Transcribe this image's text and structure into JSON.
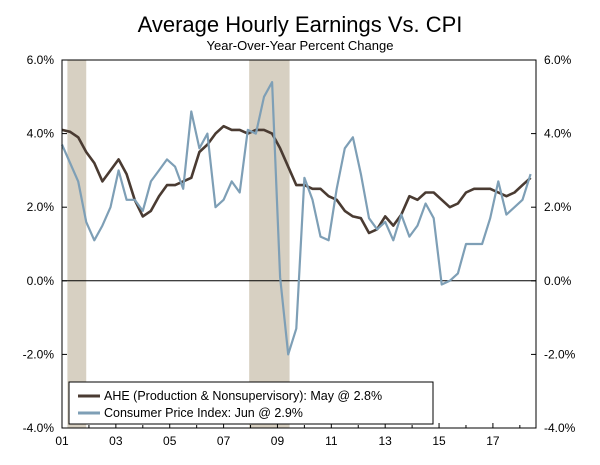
{
  "chart_data": {
    "type": "line",
    "title": "Average Hourly Earnings Vs. CPI",
    "subtitle": "Year-Over-Year Percent Change",
    "xlabel": "",
    "ylabel": "",
    "xlim": [
      2001.0,
      2018.6
    ],
    "ylim": [
      -4.0,
      6.0
    ],
    "x_ticks": [
      2001,
      2003,
      2005,
      2007,
      2009,
      2011,
      2013,
      2015,
      2017
    ],
    "x_tick_labels": [
      "01",
      "03",
      "05",
      "07",
      "09",
      "11",
      "13",
      "15",
      "17"
    ],
    "y_ticks": [
      -4,
      -2,
      0,
      2,
      4,
      6
    ],
    "y_tick_labels_left": [
      "-4.0%",
      "-2.0%",
      "0.0%",
      "2.0%",
      "4.0%",
      "6.0%"
    ],
    "y_tick_labels_right": [
      "-4.0%",
      "-2.0%",
      "0.0%",
      "2.0%",
      "4.0%",
      "6.0%"
    ],
    "grid": false,
    "legend_position": "bottom-left",
    "recessions": [
      [
        2001.2,
        2001.9
      ],
      [
        2007.95,
        2009.45
      ]
    ],
    "series": [
      {
        "name": "AHE (Production & Nonsupervisory): May @ 2.8%",
        "color": "#4a3b32",
        "x": [
          2001.0,
          2001.3,
          2001.6,
          2001.9,
          2002.2,
          2002.5,
          2002.8,
          2003.1,
          2003.4,
          2003.7,
          2004.0,
          2004.3,
          2004.6,
          2004.9,
          2005.2,
          2005.5,
          2005.8,
          2006.1,
          2006.4,
          2006.7,
          2007.0,
          2007.3,
          2007.6,
          2007.9,
          2008.2,
          2008.5,
          2008.8,
          2009.1,
          2009.4,
          2009.7,
          2010.0,
          2010.3,
          2010.6,
          2010.9,
          2011.2,
          2011.5,
          2011.8,
          2012.1,
          2012.4,
          2012.7,
          2013.0,
          2013.3,
          2013.6,
          2013.9,
          2014.2,
          2014.5,
          2014.8,
          2015.1,
          2015.4,
          2015.7,
          2016.0,
          2016.3,
          2016.6,
          2016.9,
          2017.2,
          2017.5,
          2017.8,
          2018.1,
          2018.4
        ],
        "values": [
          4.1,
          4.05,
          3.9,
          3.5,
          3.2,
          2.7,
          3.0,
          3.3,
          2.9,
          2.2,
          1.75,
          1.9,
          2.3,
          2.6,
          2.6,
          2.7,
          2.8,
          3.5,
          3.7,
          4.0,
          4.2,
          4.1,
          4.1,
          4.0,
          4.1,
          4.1,
          4.0,
          3.6,
          3.1,
          2.6,
          2.6,
          2.5,
          2.5,
          2.3,
          2.2,
          1.9,
          1.75,
          1.7,
          1.3,
          1.4,
          1.75,
          1.5,
          1.8,
          2.3,
          2.2,
          2.4,
          2.4,
          2.2,
          2.0,
          2.1,
          2.4,
          2.5,
          2.5,
          2.5,
          2.4,
          2.3,
          2.4,
          2.6,
          2.8
        ]
      },
      {
        "name": "Consumer Price Index: Jun @ 2.9%",
        "color": "#7e9fb6",
        "x": [
          2001.0,
          2001.3,
          2001.6,
          2001.9,
          2002.2,
          2002.5,
          2002.8,
          2003.1,
          2003.4,
          2003.7,
          2004.0,
          2004.3,
          2004.6,
          2004.9,
          2005.2,
          2005.5,
          2005.8,
          2006.1,
          2006.4,
          2006.7,
          2007.0,
          2007.3,
          2007.6,
          2007.9,
          2008.2,
          2008.5,
          2008.8,
          2009.1,
          2009.4,
          2009.7,
          2010.0,
          2010.3,
          2010.6,
          2010.9,
          2011.2,
          2011.5,
          2011.8,
          2012.1,
          2012.4,
          2012.7,
          2013.0,
          2013.3,
          2013.6,
          2013.9,
          2014.2,
          2014.5,
          2014.8,
          2015.1,
          2015.4,
          2015.7,
          2016.0,
          2016.3,
          2016.6,
          2016.9,
          2017.2,
          2017.5,
          2017.8,
          2018.1,
          2018.4
        ],
        "values": [
          3.7,
          3.2,
          2.7,
          1.6,
          1.1,
          1.5,
          2.0,
          3.0,
          2.2,
          2.2,
          1.9,
          2.7,
          3.0,
          3.3,
          3.1,
          2.5,
          4.6,
          3.6,
          4.0,
          2.0,
          2.2,
          2.7,
          2.4,
          4.1,
          4.0,
          5.0,
          5.4,
          0.1,
          -2.0,
          -1.3,
          2.8,
          2.2,
          1.2,
          1.1,
          2.5,
          3.6,
          3.9,
          2.9,
          1.7,
          1.4,
          1.6,
          1.1,
          1.8,
          1.2,
          1.5,
          2.1,
          1.7,
          -0.1,
          0.0,
          0.2,
          1.0,
          1.0,
          1.0,
          1.7,
          2.7,
          1.8,
          2.0,
          2.2,
          2.9
        ]
      }
    ]
  }
}
